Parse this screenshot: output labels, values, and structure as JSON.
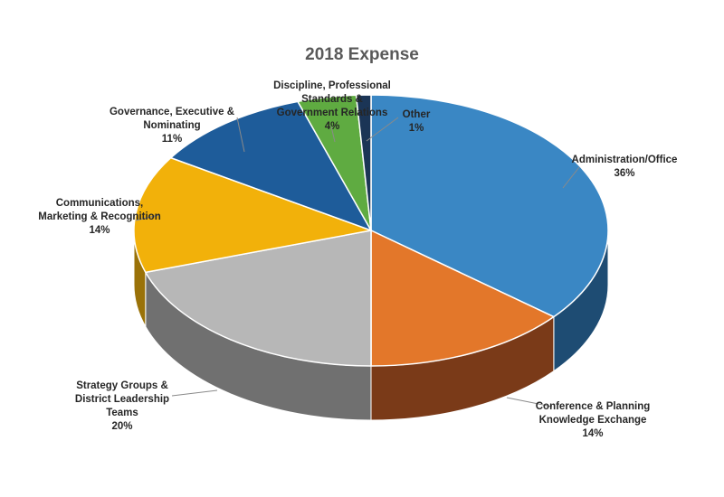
{
  "chart_data": {
    "type": "pie",
    "title": "2018 Expense",
    "slices": [
      {
        "label": "Administration/Office",
        "value": 36,
        "display": "36%",
        "color": "#3a87c4",
        "side_color": "#1e4c73"
      },
      {
        "label": "Conference & Planning Knowledge Exchange",
        "value": 14,
        "display": "14%",
        "color": "#e3772a",
        "side_color": "#7a3a18"
      },
      {
        "label": "Strategy Groups & District Leadership Teams",
        "value": 20,
        "display": "20%",
        "color": "#b7b7b7",
        "side_color": "#707070"
      },
      {
        "label": "Communications, Marketing & Recognition",
        "value": 14,
        "display": "14%",
        "color": "#f2b10a",
        "side_color": "#9a7208"
      },
      {
        "label": "Governance, Executive & Nominating",
        "value": 11,
        "display": "11%",
        "color": "#1e5c9a",
        "side_color": "#143e68"
      },
      {
        "label": "Discipline, Professional Standards & Government Relations",
        "value": 4,
        "display": "4%",
        "color": "#5fab41",
        "side_color": "#3b6e28"
      },
      {
        "label": "Other",
        "value": 1,
        "display": "1%",
        "color": "#1b3556",
        "side_color": "#0f1f33"
      }
    ]
  },
  "labels": {
    "admin": {
      "name": "Administration/Office",
      "pct": "36%"
    },
    "conference": {
      "name1": "Conference & Planning",
      "name2": "Knowledge Exchange",
      "pct": "14%"
    },
    "strategy": {
      "name1": "Strategy Groups &",
      "name2": "District Leadership",
      "name3": "Teams",
      "pct": "20%"
    },
    "communications": {
      "name1": "Communications,",
      "name2": "Marketing & Recognition",
      "pct": "14%"
    },
    "governance": {
      "name1": "Governance, Executive &",
      "name2": "Nominating",
      "pct": "11%"
    },
    "discipline": {
      "name1": "Discipline, Professional",
      "name2": "Standards &",
      "name3": "Government Relations",
      "pct": "4%"
    },
    "other": {
      "name": "Other",
      "pct": "1%"
    }
  }
}
